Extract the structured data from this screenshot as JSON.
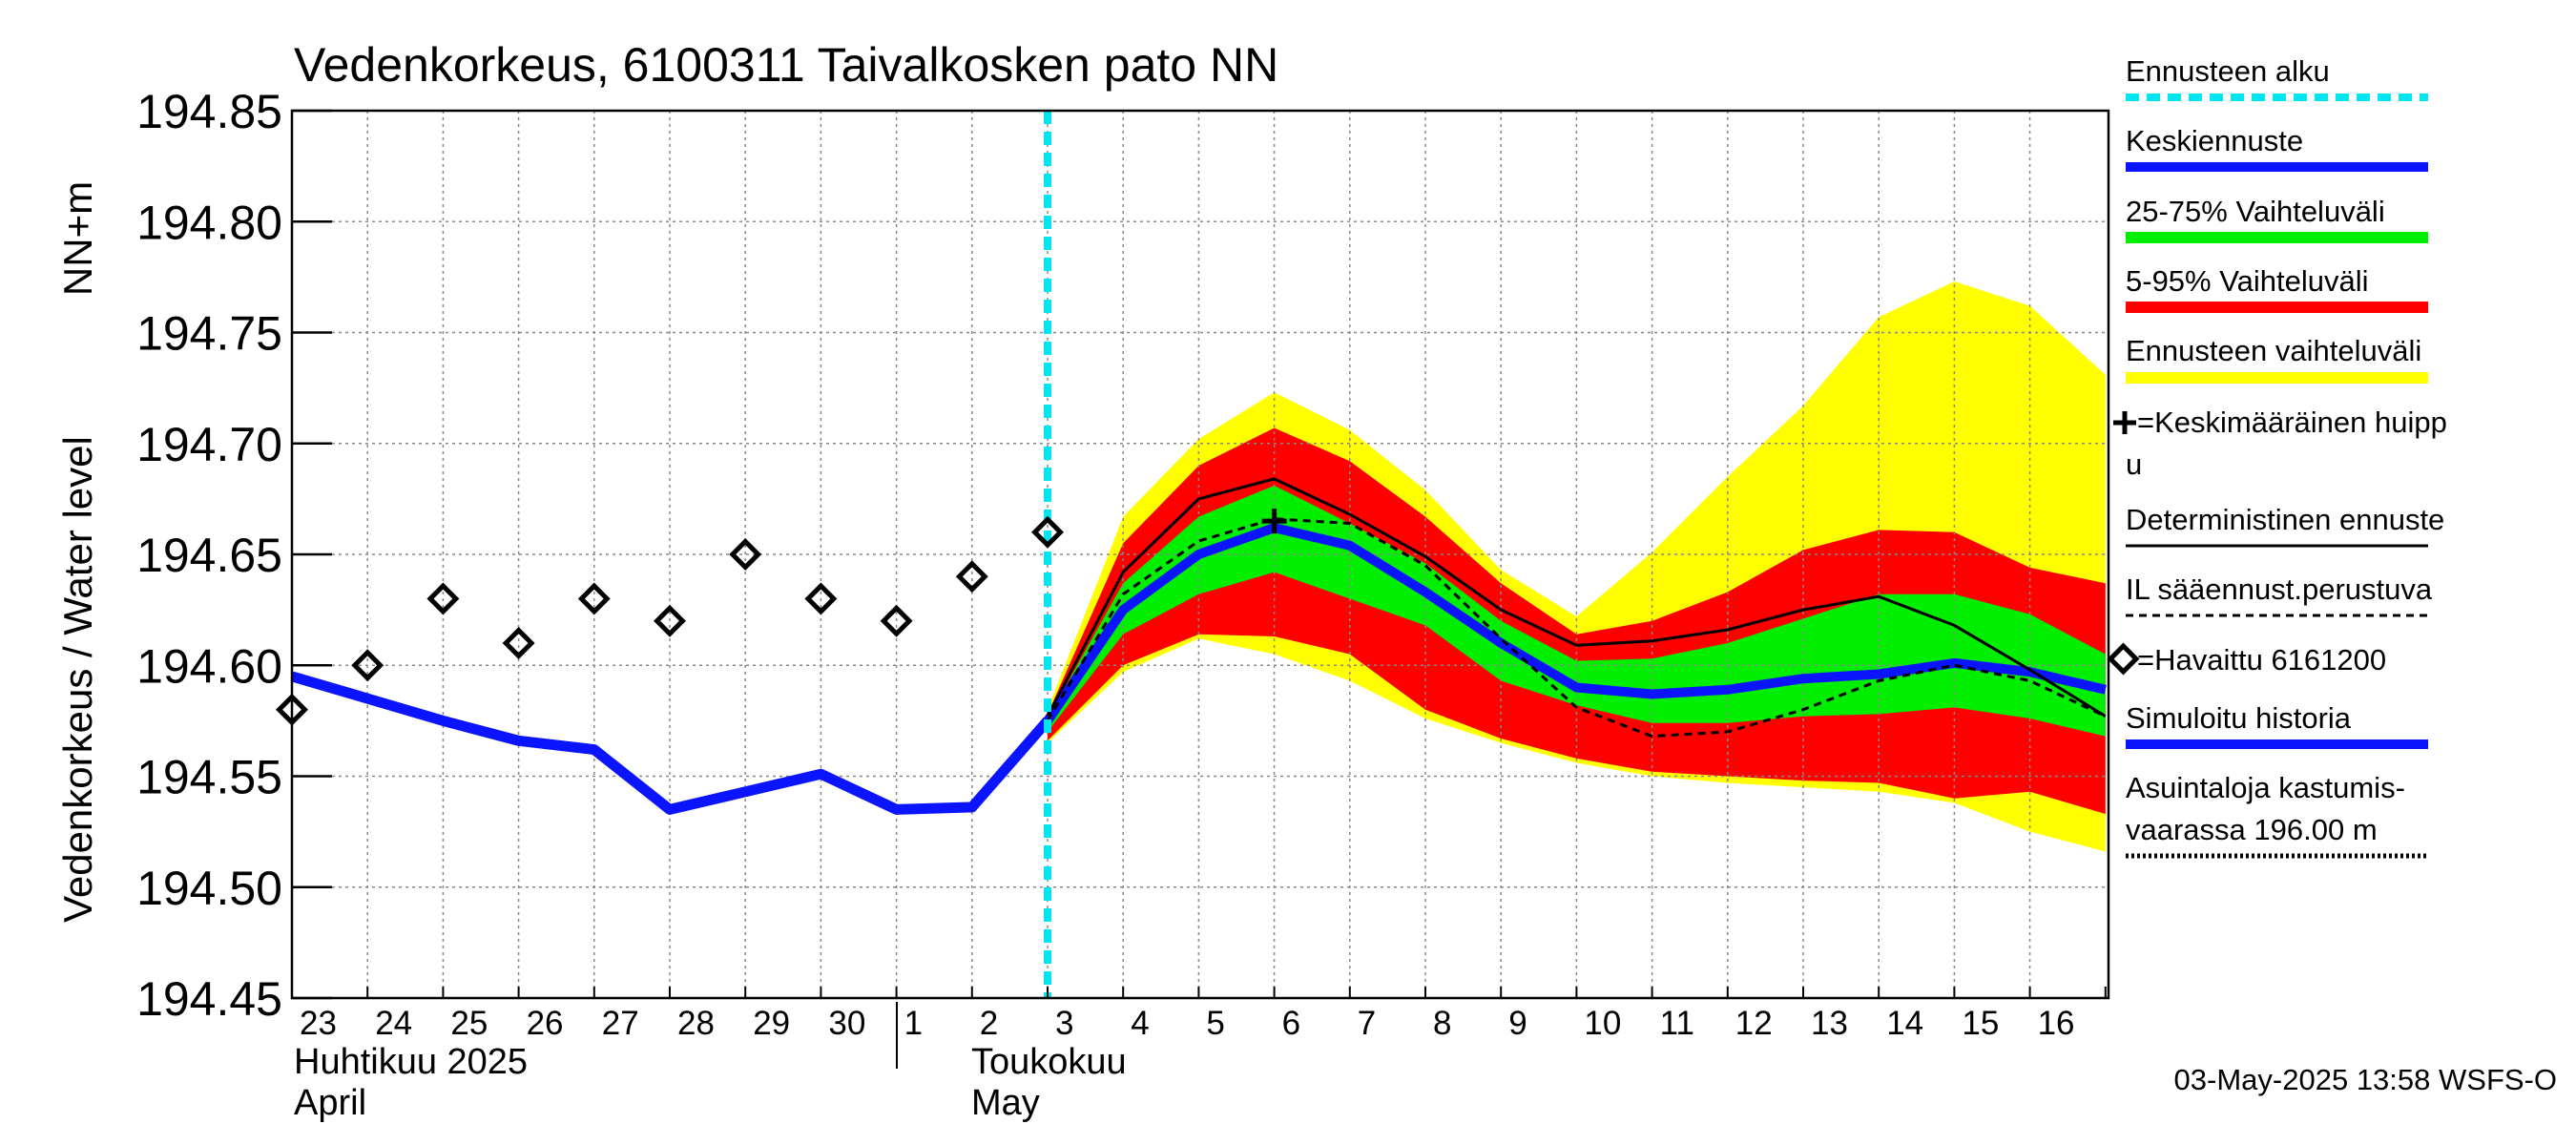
{
  "chart_data": {
    "type": "line",
    "title": "Vedenkorkeus, 6100311 Taivalkosken pato NN",
    "ylabel": "Vedenkorkeus / Water level",
    "yunit": "NN+m",
    "ylim": [
      194.45,
      194.85
    ],
    "yticks": [
      "194.85",
      "194.80",
      "194.75",
      "194.70",
      "194.65",
      "194.60",
      "194.55",
      "194.50",
      "194.45"
    ],
    "grid": true,
    "x_start_date": "2025-04-23",
    "x_end_date": "2025-05-17",
    "x_tick_labels": [
      "23",
      "24",
      "25",
      "26",
      "27",
      "28",
      "29",
      "30",
      "1",
      "2",
      "3",
      "4",
      "5",
      "6",
      "7",
      "8",
      "9",
      "10",
      "11",
      "12",
      "13",
      "14",
      "15",
      "16"
    ],
    "month_labels": [
      {
        "fi": "Huhtikuu  2025",
        "en": "April"
      },
      {
        "fi": "Toukokuu",
        "en": "May"
      }
    ],
    "forecast_start": "2025-05-03",
    "timestamp": "03-May-2025 13:58 WSFS-O",
    "legend": {
      "forecast_start": "Ennusteen alku",
      "mean_forecast": "Keskiennuste",
      "range_25_75": "25-75% Vaihteluväli",
      "range_5_95": "5-95% Vaihteluväli",
      "forecast_range": "Ennusteen vaihteluväli",
      "mean_peak": "=Keskimääräinen huippu",
      "deterministic": "Deterministinen ennuste",
      "il_forecast": "IL sääennust.perustuva",
      "observed": "=Havaittu 6161200",
      "simulated": "Simuloitu historia",
      "flood_risk": "Asuintaloja kastumisvaarassa 196.00 m"
    },
    "colors": {
      "forecast_start": "#00e5ee",
      "mean": "#0a14ff",
      "range_25_75": "#00ee00",
      "range_5_95": "#ff0000",
      "forecast_range": "#ffff00",
      "grid": "#888888"
    },
    "series": [
      {
        "name": "Simuloitu historia",
        "x": [
          "2025-04-23",
          "2025-04-24",
          "2025-04-25",
          "2025-04-26",
          "2025-04-27",
          "2025-04-28",
          "2025-04-29",
          "2025-04-30",
          "2025-05-01",
          "2025-05-02",
          "2025-05-03"
        ],
        "values": [
          194.595,
          194.585,
          194.575,
          194.566,
          194.562,
          194.535,
          194.543,
          194.551,
          194.535,
          194.536,
          194.575
        ]
      },
      {
        "name": "Keskiennuste",
        "x": [
          "2025-05-03",
          "2025-05-04",
          "2025-05-05",
          "2025-05-06",
          "2025-05-07",
          "2025-05-08",
          "2025-05-09",
          "2025-05-10",
          "2025-05-11",
          "2025-05-12",
          "2025-05-13",
          "2025-05-14",
          "2025-05-15",
          "2025-05-16",
          "2025-05-17"
        ],
        "values": [
          194.575,
          194.625,
          194.65,
          194.662,
          194.654,
          194.633,
          194.61,
          194.59,
          194.587,
          194.589,
          194.594,
          194.596,
          194.601,
          194.597,
          194.589
        ]
      },
      {
        "name": "Deterministinen ennuste",
        "x": [
          "2025-05-03",
          "2025-05-04",
          "2025-05-05",
          "2025-05-06",
          "2025-05-07",
          "2025-05-08",
          "2025-05-09",
          "2025-05-10",
          "2025-05-11",
          "2025-05-12",
          "2025-05-13",
          "2025-05-14",
          "2025-05-15",
          "2025-05-16",
          "2025-05-17"
        ],
        "values": [
          194.577,
          194.642,
          194.675,
          194.684,
          194.668,
          194.649,
          194.625,
          194.609,
          194.611,
          194.616,
          194.625,
          194.631,
          194.618,
          194.598,
          194.577
        ]
      },
      {
        "name": "IL sääennust.perustuva",
        "x": [
          "2025-05-03",
          "2025-05-04",
          "2025-05-05",
          "2025-05-06",
          "2025-05-07",
          "2025-05-08",
          "2025-05-09",
          "2025-05-10",
          "2025-05-11",
          "2025-05-12",
          "2025-05-13",
          "2025-05-14",
          "2025-05-15",
          "2025-05-16",
          "2025-05-17"
        ],
        "values": [
          194.575,
          194.632,
          194.656,
          194.666,
          194.664,
          194.645,
          194.612,
          194.581,
          194.568,
          194.57,
          194.58,
          194.593,
          194.6,
          194.593,
          194.577
        ]
      },
      {
        "name": "=Havaittu 6161200",
        "x": [
          "2025-04-23",
          "2025-04-24",
          "2025-04-25",
          "2025-04-26",
          "2025-04-27",
          "2025-04-28",
          "2025-04-29",
          "2025-04-30",
          "2025-05-01",
          "2025-05-02",
          "2025-05-03"
        ],
        "values": [
          194.58,
          194.6,
          194.63,
          194.61,
          194.63,
          194.62,
          194.65,
          194.63,
          194.62,
          194.64,
          194.66
        ]
      }
    ],
    "bands": [
      {
        "name": "Ennusteen vaihteluväli",
        "x": [
          "2025-05-03",
          "2025-05-04",
          "2025-05-05",
          "2025-05-06",
          "2025-05-07",
          "2025-05-08",
          "2025-05-09",
          "2025-05-10",
          "2025-05-11",
          "2025-05-12",
          "2025-05-13",
          "2025-05-14",
          "2025-05-15",
          "2025-05-16",
          "2025-05-17"
        ],
        "upper": [
          194.58,
          194.667,
          194.702,
          194.723,
          194.706,
          194.679,
          194.643,
          194.622,
          194.651,
          194.685,
          194.717,
          194.757,
          194.773,
          194.762,
          194.731
        ],
        "lower": [
          194.565,
          194.597,
          194.612,
          194.605,
          194.593,
          194.576,
          194.565,
          194.556,
          194.55,
          194.547,
          194.545,
          194.543,
          194.538,
          194.525,
          194.516
        ]
      },
      {
        "name": "5-95% Vaihteluväli",
        "x": [
          "2025-05-03",
          "2025-05-04",
          "2025-05-05",
          "2025-05-06",
          "2025-05-07",
          "2025-05-08",
          "2025-05-09",
          "2025-05-10",
          "2025-05-11",
          "2025-05-12",
          "2025-05-13",
          "2025-05-14",
          "2025-05-15",
          "2025-05-16",
          "2025-05-17"
        ],
        "upper": [
          194.578,
          194.655,
          194.69,
          194.707,
          194.692,
          194.667,
          194.637,
          194.614,
          194.62,
          194.633,
          194.652,
          194.661,
          194.66,
          194.644,
          194.637
        ],
        "lower": [
          194.566,
          194.6,
          194.614,
          194.613,
          194.605,
          194.58,
          194.567,
          194.558,
          194.552,
          194.55,
          194.548,
          194.547,
          194.54,
          194.543,
          194.533
        ]
      },
      {
        "name": "25-75% Vaihteluväli",
        "x": [
          "2025-05-03",
          "2025-05-04",
          "2025-05-05",
          "2025-05-06",
          "2025-05-07",
          "2025-05-08",
          "2025-05-09",
          "2025-05-10",
          "2025-05-11",
          "2025-05-12",
          "2025-05-13",
          "2025-05-14",
          "2025-05-15",
          "2025-05-16",
          "2025-05-17"
        ],
        "upper": [
          194.576,
          194.637,
          194.667,
          194.681,
          194.664,
          194.646,
          194.62,
          194.602,
          194.603,
          194.61,
          194.621,
          194.632,
          194.632,
          194.623,
          194.605
        ],
        "lower": [
          194.57,
          194.614,
          194.632,
          194.642,
          194.63,
          194.618,
          194.593,
          194.582,
          194.574,
          194.574,
          194.577,
          194.578,
          194.581,
          194.576,
          194.568
        ]
      }
    ],
    "mean_peak": {
      "x": "2025-05-06",
      "value": 194.665
    }
  }
}
